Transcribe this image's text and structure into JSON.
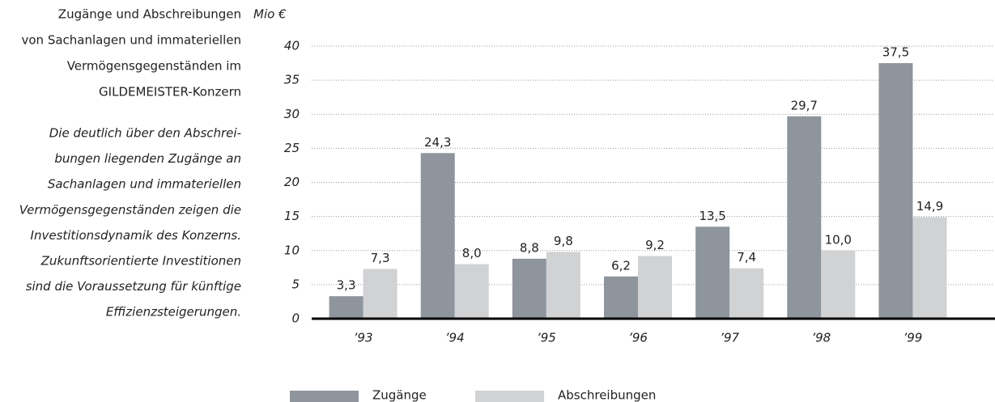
{
  "chart_data": {
    "type": "bar",
    "title_lines": [
      "Zugänge und Abschreibungen",
      "von Sachanlagen und immateriellen",
      "Vermögensgegenständen im",
      "GILDEMEISTER-Konzern"
    ],
    "description_lines": [
      "Die deutlich über den Abschrei-",
      "bungen liegenden Zugänge an",
      "Sachanlagen und immateriellen",
      "Vermögensgegenständen zeigen die",
      "Investitionsdynamik des Konzerns.",
      "Zukunftsorientierte Investitionen",
      "sind die Voraussetzung für künftige",
      "Effizienzsteigerungen."
    ],
    "y_label": "Mio €",
    "categories": [
      "’93",
      "’94",
      "’95",
      "’96",
      "’97",
      "’98",
      "’99"
    ],
    "series": [
      {
        "name": "Zugänge",
        "color": "#8e959c",
        "values": [
          3.3,
          24.3,
          8.8,
          6.2,
          13.5,
          29.7,
          37.5
        ],
        "value_labels": [
          "3,3",
          "24,3",
          "8,8",
          "6,2",
          "13,5",
          "29,7",
          "37,5"
        ]
      },
      {
        "name": "Abschreibungen",
        "color": "#d0d2d4",
        "values": [
          7.3,
          8.0,
          9.8,
          9.2,
          7.4,
          10.0,
          14.9
        ],
        "value_labels": [
          "7,3",
          "8,0",
          "9,8",
          "9,2",
          "7,4",
          "10,0",
          "14,9"
        ]
      }
    ],
    "ylim": [
      0,
      40
    ],
    "yticks": [
      0,
      5,
      10,
      15,
      20,
      25,
      30,
      35,
      40
    ],
    "grid": true
  }
}
